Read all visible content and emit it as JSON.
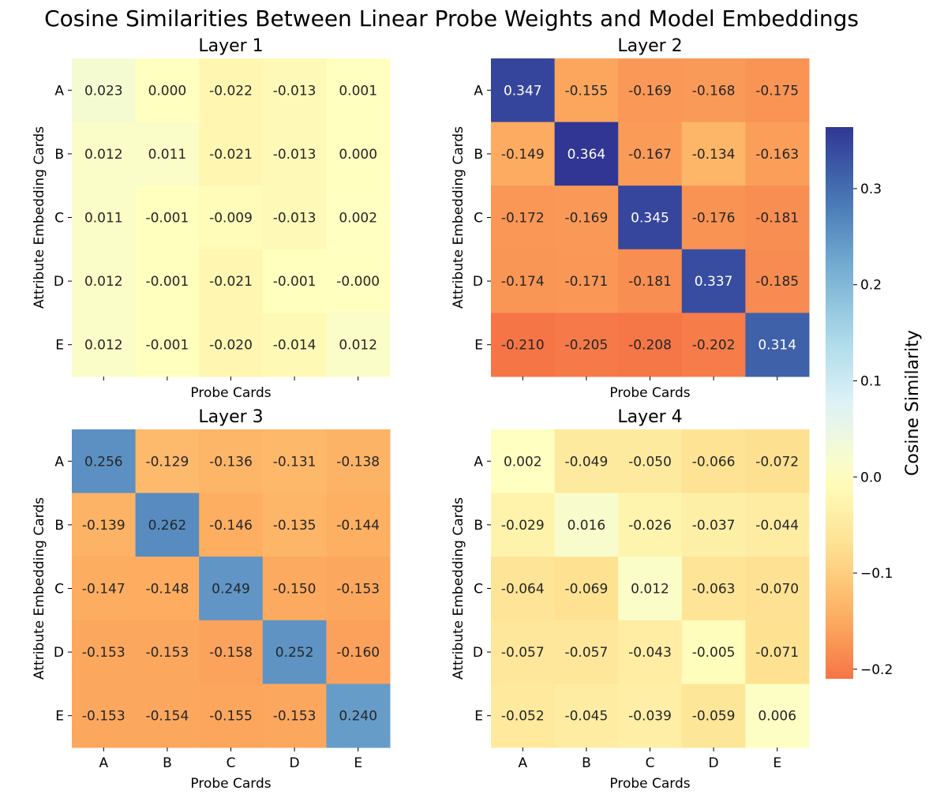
{
  "chart_data": {
    "type": "heatmap",
    "title": "Cosine Similarities Between Linear Probe Weights and Model Embeddings",
    "xlabel": "Probe Cards",
    "ylabel": "Attribute Embedding Cards",
    "x_categories": [
      "A",
      "B",
      "C",
      "D",
      "E"
    ],
    "y_categories": [
      "A",
      "B",
      "C",
      "D",
      "E"
    ],
    "colorbar": {
      "label": "Cosine Similarity",
      "range": [
        -0.21,
        0.364
      ],
      "center": 0.0,
      "colormap": "RdYlBu",
      "ticks": [
        -0.2,
        -0.1,
        0.0,
        0.1,
        0.2,
        0.3
      ],
      "tick_labels": [
        "−0.2",
        "−0.1",
        "0.0",
        "0.1",
        "0.2",
        "0.3"
      ]
    },
    "panels": [
      {
        "title": "Layer 1",
        "values": [
          [
            0.023,
            0.0,
            -0.022,
            -0.013,
            0.001
          ],
          [
            0.012,
            0.011,
            -0.021,
            -0.013,
            0.0
          ],
          [
            0.011,
            -0.001,
            -0.009,
            -0.013,
            0.002
          ],
          [
            0.012,
            -0.001,
            -0.021,
            -0.001,
            -0.0
          ],
          [
            0.012,
            -0.001,
            -0.02,
            -0.014,
            0.012
          ]
        ],
        "labels": [
          [
            "0.023",
            "0.000",
            "-0.022",
            "-0.013",
            "0.001"
          ],
          [
            "0.012",
            "0.011",
            "-0.021",
            "-0.013",
            "0.000"
          ],
          [
            "0.011",
            "-0.001",
            "-0.009",
            "-0.013",
            "0.002"
          ],
          [
            "0.012",
            "-0.001",
            "-0.021",
            "-0.001",
            "-0.000"
          ],
          [
            "0.012",
            "-0.001",
            "-0.020",
            "-0.014",
            "0.012"
          ]
        ]
      },
      {
        "title": "Layer 2",
        "values": [
          [
            0.347,
            -0.155,
            -0.169,
            -0.168,
            -0.175
          ],
          [
            -0.149,
            0.364,
            -0.167,
            -0.134,
            -0.163
          ],
          [
            -0.172,
            -0.169,
            0.345,
            -0.176,
            -0.181
          ],
          [
            -0.174,
            -0.171,
            -0.181,
            0.337,
            -0.185
          ],
          [
            -0.21,
            -0.205,
            -0.208,
            -0.202,
            0.314
          ]
        ],
        "labels": [
          [
            "0.347",
            "-0.155",
            "-0.169",
            "-0.168",
            "-0.175"
          ],
          [
            "-0.149",
            "0.364",
            "-0.167",
            "-0.134",
            "-0.163"
          ],
          [
            "-0.172",
            "-0.169",
            "0.345",
            "-0.176",
            "-0.181"
          ],
          [
            "-0.174",
            "-0.171",
            "-0.181",
            "0.337",
            "-0.185"
          ],
          [
            "-0.210",
            "-0.205",
            "-0.208",
            "-0.202",
            "0.314"
          ]
        ]
      },
      {
        "title": "Layer 3",
        "values": [
          [
            0.256,
            -0.129,
            -0.136,
            -0.131,
            -0.138
          ],
          [
            -0.139,
            0.262,
            -0.146,
            -0.135,
            -0.144
          ],
          [
            -0.147,
            -0.148,
            0.249,
            -0.15,
            -0.153
          ],
          [
            -0.153,
            -0.153,
            -0.158,
            0.252,
            -0.16
          ],
          [
            -0.153,
            -0.154,
            -0.155,
            -0.153,
            0.24
          ]
        ],
        "labels": [
          [
            "0.256",
            "-0.129",
            "-0.136",
            "-0.131",
            "-0.138"
          ],
          [
            "-0.139",
            "0.262",
            "-0.146",
            "-0.135",
            "-0.144"
          ],
          [
            "-0.147",
            "-0.148",
            "0.249",
            "-0.150",
            "-0.153"
          ],
          [
            "-0.153",
            "-0.153",
            "-0.158",
            "0.252",
            "-0.160"
          ],
          [
            "-0.153",
            "-0.154",
            "-0.155",
            "-0.153",
            "0.240"
          ]
        ]
      },
      {
        "title": "Layer 4",
        "values": [
          [
            0.002,
            -0.049,
            -0.05,
            -0.066,
            -0.072
          ],
          [
            -0.029,
            0.016,
            -0.026,
            -0.037,
            -0.044
          ],
          [
            -0.064,
            -0.069,
            0.012,
            -0.063,
            -0.07
          ],
          [
            -0.057,
            -0.057,
            -0.043,
            -0.005,
            -0.071
          ],
          [
            -0.052,
            -0.045,
            -0.039,
            -0.059,
            0.006
          ]
        ],
        "labels": [
          [
            "0.002",
            "-0.049",
            "-0.050",
            "-0.066",
            "-0.072"
          ],
          [
            "-0.029",
            "0.016",
            "-0.026",
            "-0.037",
            "-0.044"
          ],
          [
            "-0.064",
            "-0.069",
            "0.012",
            "-0.063",
            "-0.070"
          ],
          [
            "-0.057",
            "-0.057",
            "-0.043",
            "-0.005",
            "-0.071"
          ],
          [
            "-0.052",
            "-0.045",
            "-0.039",
            "-0.059",
            "0.006"
          ]
        ]
      }
    ]
  }
}
